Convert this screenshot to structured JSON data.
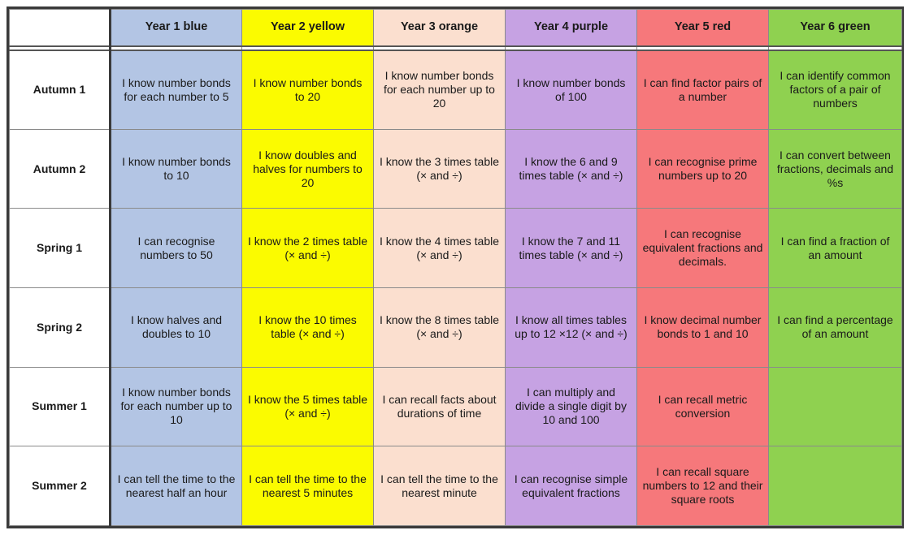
{
  "colors": {
    "year1": "#b3c5e4",
    "year2": "#fbfb00",
    "year3": "#fbdfcf",
    "year4": "#c6a2e3",
    "year5": "#f6787b",
    "year6": "#8fd150"
  },
  "headers": [
    "Year 1 blue",
    "Year 2 yellow",
    "Year 3 orange",
    "Year 4 purple",
    "Year 5 red",
    "Year 6 green"
  ],
  "rows": [
    {
      "term": "Autumn 1",
      "cells": [
        "I know number bonds for each number to 5",
        "I know number bonds to 20",
        "I know number bonds for each number up to 20",
        "I know number bonds of 100",
        "I can find factor pairs of a number",
        "I can identify common factors of a pair of numbers"
      ]
    },
    {
      "term": "Autumn 2",
      "cells": [
        "I know number bonds to 10",
        "I know doubles and halves for numbers to 20",
        "I know the 3 times table (× and ÷)",
        "I know the 6 and 9 times table (× and ÷)",
        "I can recognise prime numbers up to 20",
        "I can convert between fractions, decimals and %s"
      ]
    },
    {
      "term": "Spring 1",
      "cells": [
        "I can recognise numbers to 50",
        "I know the 2 times table (× and ÷)",
        "I know the 4 times table (× and ÷)",
        "I know the 7 and 11 times table (× and ÷)",
        "I can recognise equivalent fractions and decimals.",
        "I can find a fraction of an amount"
      ]
    },
    {
      "term": "Spring 2",
      "cells": [
        "I know halves and doubles to 10",
        "I know the 10 times table (× and ÷)",
        "I know the 8 times table (× and ÷)",
        "I know all times tables up to 12 ×12 (× and ÷)",
        "I know decimal number bonds to 1 and 10",
        "I can find a percentage of an amount"
      ]
    },
    {
      "term": "Summer 1",
      "cells": [
        "I know number bonds for each number up to 10",
        "I know the 5 times table (× and ÷)",
        "I can recall facts about durations of time",
        "I can multiply and divide a single digit by 10 and 100",
        "I can recall metric conversion",
        ""
      ]
    },
    {
      "term": "Summer 2",
      "cells": [
        "I can tell the time to the nearest half an hour",
        "I can tell the time to the nearest 5 minutes",
        "I can tell the time to the nearest minute",
        "I can recognise simple equivalent fractions",
        "I can recall square numbers to 12 and their square roots",
        ""
      ]
    }
  ]
}
